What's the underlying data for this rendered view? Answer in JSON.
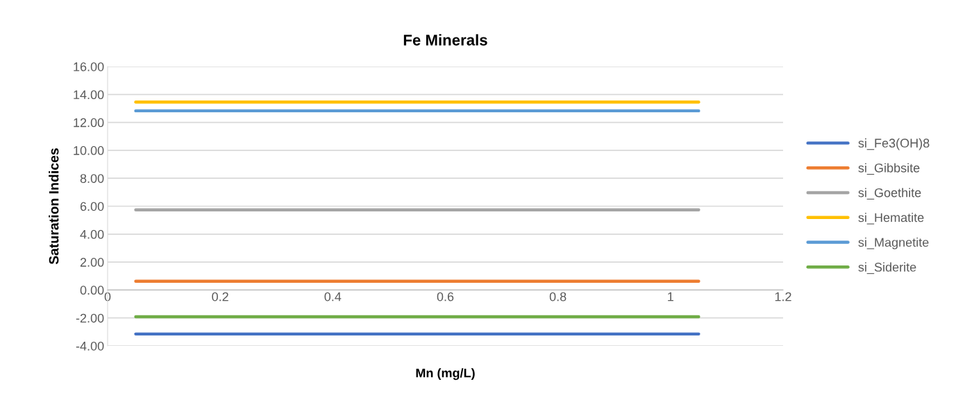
{
  "chart_data": {
    "type": "line",
    "title": "Fe Minerals",
    "xlabel": "Mn (mg/L)",
    "ylabel": "Saturation Indices",
    "x": [
      0.05,
      1.05
    ],
    "series": [
      {
        "name": "si_Fe3(OH)8",
        "color": "#4472c4",
        "values": [
          -3.15,
          -3.15
        ]
      },
      {
        "name": "si_Gibbsite",
        "color": "#ed7d31",
        "values": [
          0.63,
          0.63
        ]
      },
      {
        "name": "si_Goethite",
        "color": "#a5a5a5",
        "values": [
          5.74,
          5.74
        ]
      },
      {
        "name": "si_Hematite",
        "color": "#ffc000",
        "values": [
          13.46,
          13.46
        ]
      },
      {
        "name": "si_Magnetite",
        "color": "#5b9bd5",
        "values": [
          12.83,
          12.83
        ]
      },
      {
        "name": "si_Siderite",
        "color": "#70ad47",
        "values": [
          -1.92,
          -1.92
        ]
      }
    ],
    "xlim": [
      0,
      1.2
    ],
    "xticks": [
      0,
      0.2,
      0.4,
      0.6,
      0.8,
      1,
      1.2
    ],
    "ylim": [
      -4,
      16
    ],
    "yticks": [
      {
        "value": -4,
        "label": "-4.00"
      },
      {
        "value": -2,
        "label": "-2.00"
      },
      {
        "value": 0,
        "label": "0.00"
      },
      {
        "value": 2,
        "label": "2.00"
      },
      {
        "value": 4,
        "label": "4.00"
      },
      {
        "value": 6,
        "label": "6.00"
      },
      {
        "value": 8,
        "label": "8.00"
      },
      {
        "value": 10,
        "label": "10.00"
      },
      {
        "value": 12,
        "label": "12.00"
      },
      {
        "value": 14,
        "label": "14.00"
      },
      {
        "value": 16,
        "label": "16.00"
      }
    ],
    "grid": "y",
    "legend": "right",
    "marker": "none",
    "line_style": "solid"
  }
}
